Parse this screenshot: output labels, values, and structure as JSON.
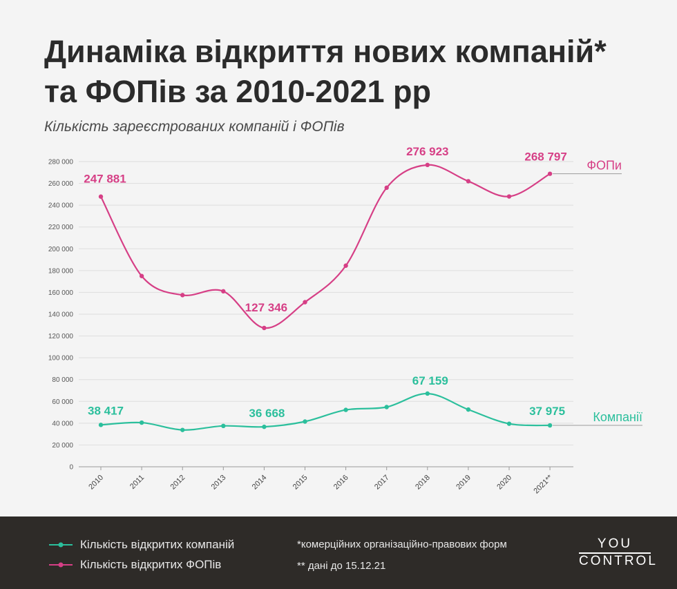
{
  "header": {
    "title_line1": "Динаміка відкриття нових компаній*",
    "title_line2": "та ФОПів за 2010-2021 рр",
    "subtitle": "Кількість зареєстрованих компаній і ФОПів"
  },
  "chart_data": {
    "type": "line",
    "categories": [
      "2010",
      "2011",
      "2012",
      "2013",
      "2014",
      "2015",
      "2016",
      "2017",
      "2018",
      "2019",
      "2020",
      "2021**"
    ],
    "ylim": [
      0,
      280000
    ],
    "yticks": [
      0,
      20000,
      40000,
      60000,
      80000,
      100000,
      120000,
      140000,
      160000,
      180000,
      200000,
      220000,
      240000,
      260000,
      280000
    ],
    "ytick_labels": [
      "0",
      "20 000",
      "40 000",
      "60 000",
      "80 000",
      "100 000",
      "120 000",
      "140 000",
      "160 000",
      "180 000",
      "200 000",
      "220 000",
      "240 000",
      "260 000",
      "280 000"
    ],
    "grid": true,
    "series": [
      {
        "name": "ФОПи",
        "color": "#d63f86",
        "values": [
          247881,
          175000,
          157500,
          161000,
          127346,
          151000,
          184500,
          256000,
          276923,
          262000,
          248000,
          268797
        ],
        "labels": [
          {
            "index": 0,
            "text": "247 881"
          },
          {
            "index": 4,
            "text": "127 346"
          },
          {
            "index": 8,
            "text": "276 923"
          },
          {
            "index": 11,
            "text": "268 797"
          }
        ]
      },
      {
        "name": "Компанії",
        "color": "#2bbf9c",
        "values": [
          38417,
          40500,
          33800,
          37500,
          36668,
          41500,
          52200,
          54800,
          67159,
          52500,
          39500,
          37975
        ],
        "labels": [
          {
            "index": 0,
            "text": "38 417"
          },
          {
            "index": 4,
            "text": "36 668"
          },
          {
            "index": 8,
            "text": "67 159"
          },
          {
            "index": 11,
            "text": "37 975"
          }
        ]
      }
    ]
  },
  "legend": {
    "companies_label": "Кількість відкритих компаній",
    "fop_label": "Кількість відкритих ФОПів",
    "companies_color": "#2bbf9c",
    "fop_color": "#d63f86"
  },
  "notes": {
    "note1": "*комерційних організаційно-правових форм",
    "note2": "** дані до 15.12.21"
  },
  "logo": {
    "top": "YOU",
    "bottom": "CONTROL"
  }
}
